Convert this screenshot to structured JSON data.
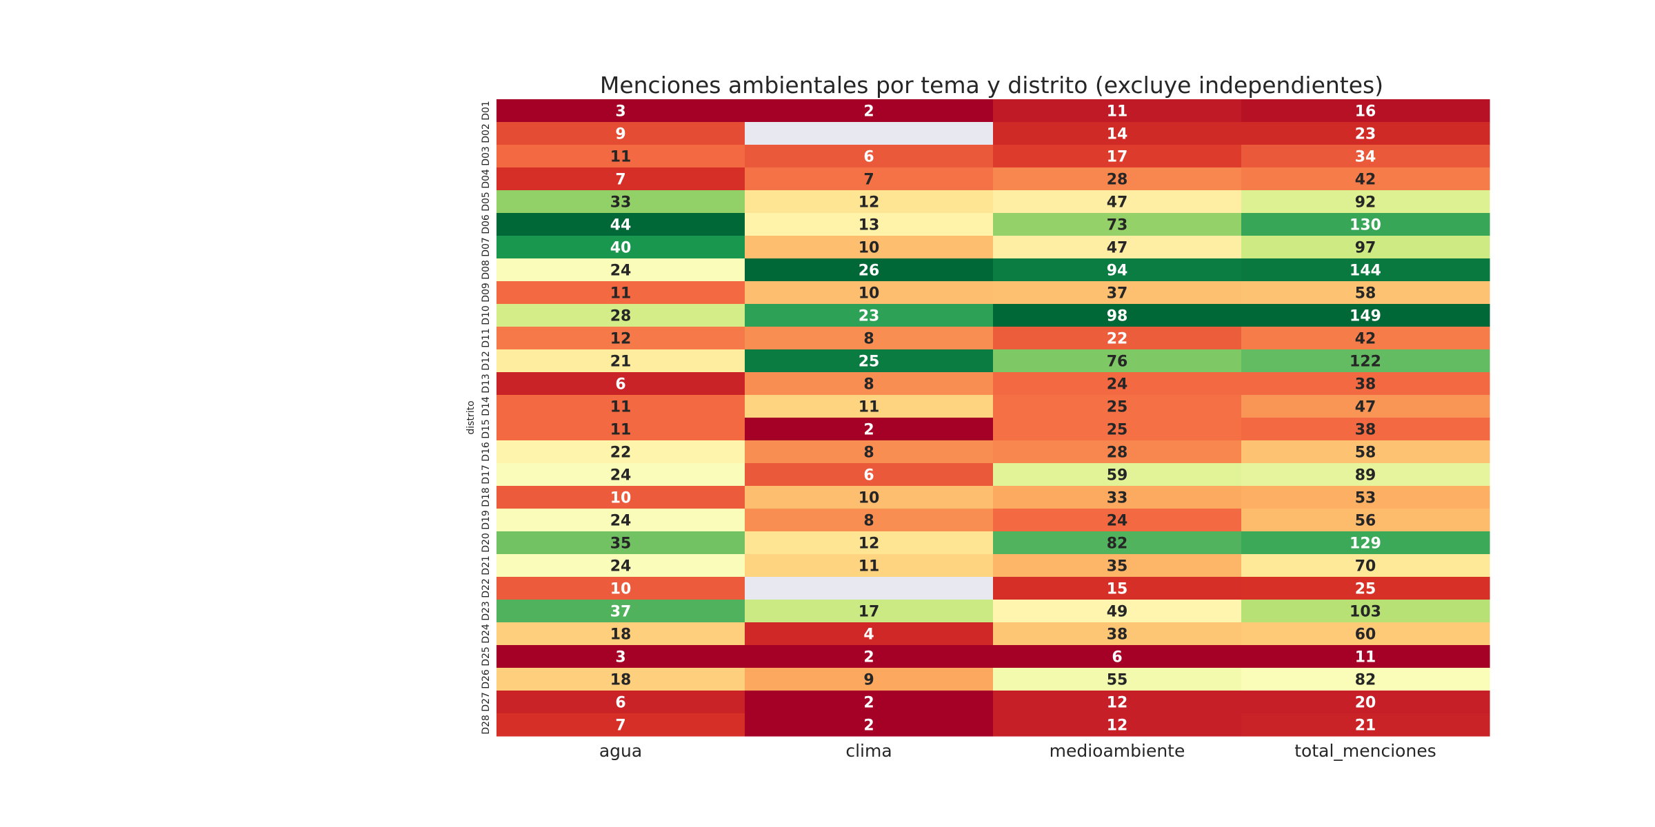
{
  "chart_data": {
    "type": "heatmap",
    "title": "Menciones ambientales por tema y distrito (excluye independientes)",
    "xlabel": "",
    "ylabel": "distrito",
    "columns": [
      "agua",
      "clima",
      "medioambiente",
      "total_menciones"
    ],
    "rows": [
      "D01",
      "D02",
      "D03",
      "D04",
      "D05",
      "D06",
      "D07",
      "D08",
      "D09",
      "D10",
      "D11",
      "D12",
      "D13",
      "D14",
      "D15",
      "D16",
      "D17",
      "D18",
      "D19",
      "D20",
      "D21",
      "D22",
      "D23",
      "D24",
      "D25",
      "D26",
      "D27",
      "D28"
    ],
    "values": [
      [
        3,
        2,
        11,
        16
      ],
      [
        9,
        null,
        14,
        23
      ],
      [
        11,
        6,
        17,
        34
      ],
      [
        7,
        7,
        28,
        42
      ],
      [
        33,
        12,
        47,
        92
      ],
      [
        44,
        13,
        73,
        130
      ],
      [
        40,
        10,
        47,
        97
      ],
      [
        24,
        26,
        94,
        144
      ],
      [
        11,
        10,
        37,
        58
      ],
      [
        28,
        23,
        98,
        149
      ],
      [
        12,
        8,
        22,
        42
      ],
      [
        21,
        25,
        76,
        122
      ],
      [
        6,
        8,
        24,
        38
      ],
      [
        11,
        11,
        25,
        47
      ],
      [
        11,
        2,
        25,
        38
      ],
      [
        22,
        8,
        28,
        58
      ],
      [
        24,
        6,
        59,
        89
      ],
      [
        10,
        10,
        33,
        53
      ],
      [
        24,
        8,
        24,
        56
      ],
      [
        35,
        12,
        82,
        129
      ],
      [
        24,
        11,
        35,
        70
      ],
      [
        10,
        null,
        15,
        25
      ],
      [
        37,
        17,
        49,
        103
      ],
      [
        18,
        4,
        38,
        60
      ],
      [
        3,
        2,
        6,
        11
      ],
      [
        18,
        9,
        55,
        82
      ],
      [
        6,
        2,
        12,
        20
      ],
      [
        7,
        2,
        12,
        21
      ]
    ],
    "colormap": "RdYlGn",
    "color_normalization": "per-column",
    "missing_color": "#e8e8f0",
    "annot": true,
    "colorbar": false
  }
}
